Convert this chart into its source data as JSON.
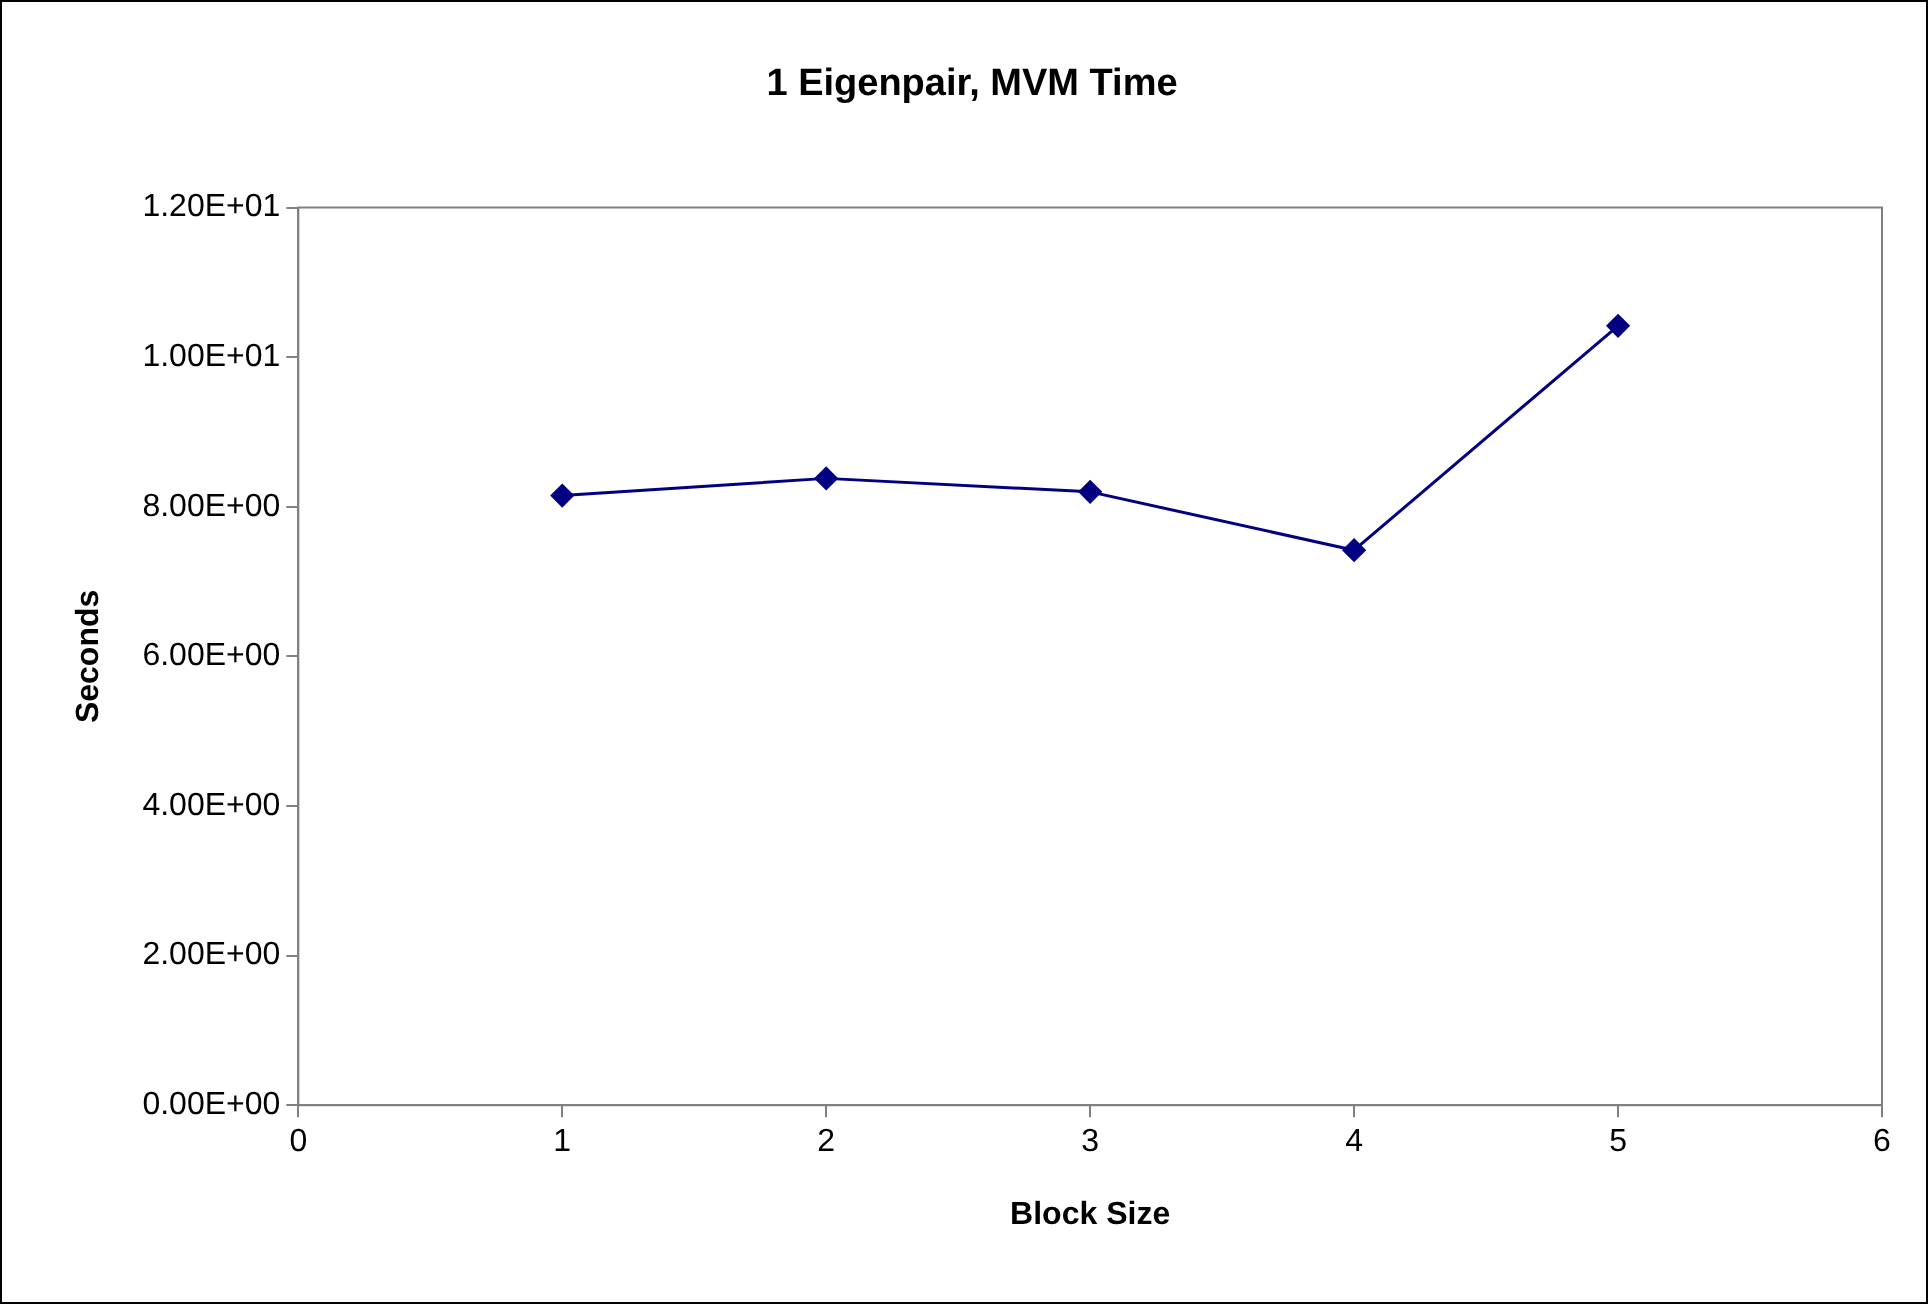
{
  "chart_data": {
    "type": "line",
    "title": "1 Eigenpair, MVM Time",
    "xlabel": "Block Size",
    "ylabel": "Seconds",
    "x": [
      1,
      2,
      3,
      4,
      5
    ],
    "series": [
      {
        "color": "#000080",
        "values": [
          8.15,
          8.38,
          8.2,
          7.42,
          10.42
        ]
      }
    ],
    "xlim": [
      0,
      6
    ],
    "xticks": [
      0,
      1,
      2,
      3,
      4,
      5,
      6
    ],
    "ylim": [
      0,
      12
    ],
    "yticks": [
      {
        "value": 0,
        "label": "0.00E+00"
      },
      {
        "value": 2,
        "label": "2.00E+00"
      },
      {
        "value": 4,
        "label": "4.00E+00"
      },
      {
        "value": 6,
        "label": "6.00E+00"
      },
      {
        "value": 8,
        "label": "8.00E+00"
      },
      {
        "value": 10,
        "label": "1.00E+01"
      },
      {
        "value": 12,
        "label": "1.20E+01"
      }
    ],
    "grid": false,
    "legend": false,
    "marker": "diamond",
    "line_style": "solid"
  }
}
